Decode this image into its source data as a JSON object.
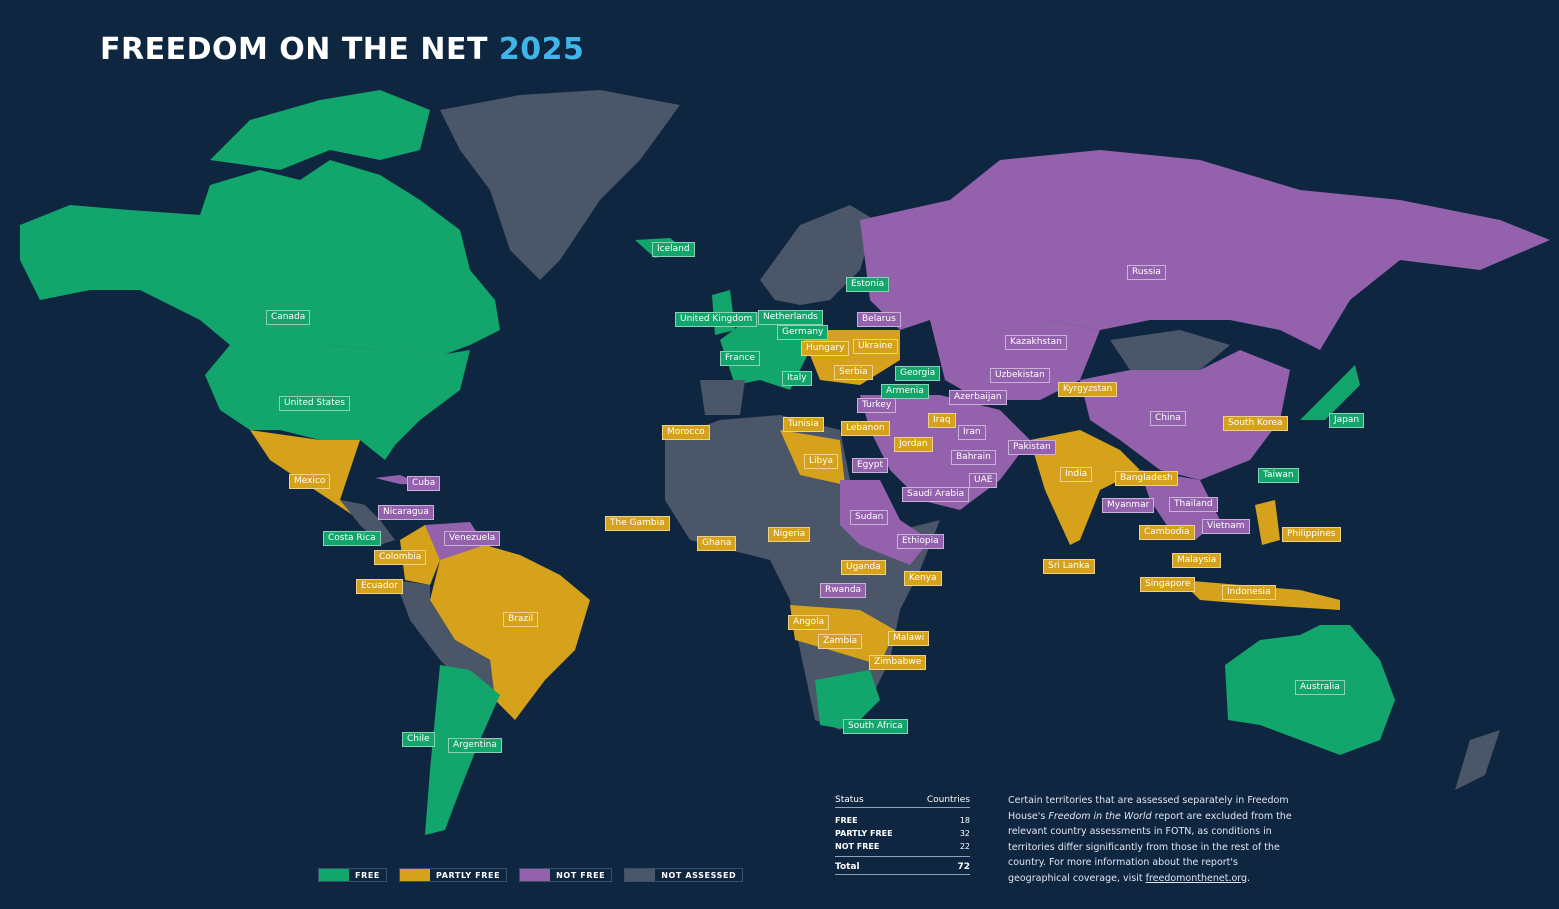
{
  "title": {
    "main": "FREEDOM ON THE NET",
    "year": "2025"
  },
  "colors": {
    "background": "#0f2641",
    "free": "#12a56c",
    "partly_free": "#d6a21b",
    "not_free": "#9462ad",
    "not_assessed": "#4b5668",
    "year_accent": "#3fb5ea"
  },
  "legend": [
    {
      "label": "FREE",
      "status": "free"
    },
    {
      "label": "PARTLY FREE",
      "status": "partly_free"
    },
    {
      "label": "NOT FREE",
      "status": "not_free"
    },
    {
      "label": "NOT ASSESSED",
      "status": "not_assessed"
    }
  ],
  "stats": {
    "header": {
      "status": "Status",
      "countries": "Countries"
    },
    "rows": [
      {
        "label": "FREE",
        "count": "18"
      },
      {
        "label": "PARTLY FREE",
        "count": "32"
      },
      {
        "label": "NOT FREE",
        "count": "22"
      }
    ],
    "total": {
      "label": "Total",
      "count": "72"
    }
  },
  "note": {
    "part1": "Certain territories that are assessed separately in Freedom House's ",
    "italic": "Freedom in the World",
    "part2": " report are excluded from the relevant country assessments in FOTN, as conditions in territories differ significantly from those in the rest of the country. For more information about the report's geographical coverage, visit ",
    "link": "freedomonthenet.org",
    "end": "."
  },
  "countries": [
    {
      "name": "Iceland",
      "status": "free"
    },
    {
      "name": "Canada",
      "status": "free"
    },
    {
      "name": "United States",
      "status": "free"
    },
    {
      "name": "Mexico",
      "status": "partly_free"
    },
    {
      "name": "Cuba",
      "status": "not_free"
    },
    {
      "name": "Nicaragua",
      "status": "not_free"
    },
    {
      "name": "Costa Rica",
      "status": "free"
    },
    {
      "name": "Venezuela",
      "status": "not_free"
    },
    {
      "name": "Colombia",
      "status": "partly_free"
    },
    {
      "name": "Ecuador",
      "status": "partly_free"
    },
    {
      "name": "Brazil",
      "status": "partly_free"
    },
    {
      "name": "Chile",
      "status": "free"
    },
    {
      "name": "Argentina",
      "status": "free"
    },
    {
      "name": "United Kingdom",
      "status": "free"
    },
    {
      "name": "Netherlands",
      "status": "free"
    },
    {
      "name": "Germany",
      "status": "free"
    },
    {
      "name": "France",
      "status": "free"
    },
    {
      "name": "Estonia",
      "status": "free"
    },
    {
      "name": "Belarus",
      "status": "not_free"
    },
    {
      "name": "Ukraine",
      "status": "partly_free"
    },
    {
      "name": "Hungary",
      "status": "partly_free"
    },
    {
      "name": "Serbia",
      "status": "partly_free"
    },
    {
      "name": "Italy",
      "status": "free"
    },
    {
      "name": "Georgia",
      "status": "free"
    },
    {
      "name": "Armenia",
      "status": "free"
    },
    {
      "name": "Azerbaijan",
      "status": "not_free"
    },
    {
      "name": "Turkey",
      "status": "not_free"
    },
    {
      "name": "Morocco",
      "status": "partly_free"
    },
    {
      "name": "Tunisia",
      "status": "partly_free"
    },
    {
      "name": "Lebanon",
      "status": "partly_free"
    },
    {
      "name": "Iraq",
      "status": "partly_free"
    },
    {
      "name": "Iran",
      "status": "not_free"
    },
    {
      "name": "Jordan",
      "status": "partly_free"
    },
    {
      "name": "Libya",
      "status": "partly_free"
    },
    {
      "name": "Egypt",
      "status": "not_free"
    },
    {
      "name": "Bahrain",
      "status": "not_free"
    },
    {
      "name": "Saudi Arabia",
      "status": "not_free"
    },
    {
      "name": "UAE",
      "status": "not_free"
    },
    {
      "name": "Sudan",
      "status": "not_free"
    },
    {
      "name": "Ethiopia",
      "status": "not_free"
    },
    {
      "name": "The Gambia",
      "status": "partly_free"
    },
    {
      "name": "Ghana",
      "status": "partly_free"
    },
    {
      "name": "Nigeria",
      "status": "partly_free"
    },
    {
      "name": "Uganda",
      "status": "partly_free"
    },
    {
      "name": "Kenya",
      "status": "partly_free"
    },
    {
      "name": "Rwanda",
      "status": "not_free"
    },
    {
      "name": "Angola",
      "status": "partly_free"
    },
    {
      "name": "Zambia",
      "status": "partly_free"
    },
    {
      "name": "Malawi",
      "status": "partly_free"
    },
    {
      "name": "Zimbabwe",
      "status": "partly_free"
    },
    {
      "name": "South Africa",
      "status": "free"
    },
    {
      "name": "Russia",
      "status": "not_free"
    },
    {
      "name": "Kazakhstan",
      "status": "not_free"
    },
    {
      "name": "Uzbekistan",
      "status": "not_free"
    },
    {
      "name": "Kyrgyzstan",
      "status": "partly_free"
    },
    {
      "name": "Pakistan",
      "status": "not_free"
    },
    {
      "name": "India",
      "status": "partly_free"
    },
    {
      "name": "Sri Lanka",
      "status": "partly_free"
    },
    {
      "name": "China",
      "status": "not_free"
    },
    {
      "name": "South Korea",
      "status": "partly_free"
    },
    {
      "name": "Japan",
      "status": "free"
    },
    {
      "name": "Taiwan",
      "status": "free"
    },
    {
      "name": "Bangladesh",
      "status": "partly_free"
    },
    {
      "name": "Myanmar",
      "status": "not_free"
    },
    {
      "name": "Thailand",
      "status": "not_free"
    },
    {
      "name": "Cambodia",
      "status": "partly_free"
    },
    {
      "name": "Vietnam",
      "status": "not_free"
    },
    {
      "name": "Philippines",
      "status": "partly_free"
    },
    {
      "name": "Malaysia",
      "status": "partly_free"
    },
    {
      "name": "Singapore",
      "status": "partly_free"
    },
    {
      "name": "Indonesia",
      "status": "partly_free"
    },
    {
      "name": "Australia",
      "status": "free"
    }
  ]
}
